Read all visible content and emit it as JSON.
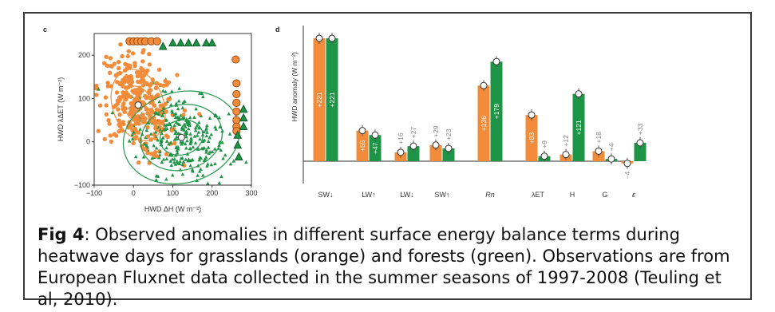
{
  "colors": {
    "grassland": "#F28C3A",
    "forest": "#1E9447",
    "grassland_edge": "#A0501A",
    "forest_edge": "#0C5A26",
    "axis": "#333333"
  },
  "caption": {
    "label": "Fig 4",
    "text": ": Observed anomalies in different surface energy balance terms during heatwave days for grasslands (orange) and forests (green). Observations are from European Fluxnet data collected in the summer seasons of 1997-2008 (Teuling et al, 2010)."
  },
  "chart_data": [
    {
      "type": "scatter",
      "panel_label": "c",
      "xlabel": "HWD ΔH (W m⁻²)",
      "ylabel": "HWD λΔET (W m⁻²)",
      "xlim": [
        -100,
        300
      ],
      "ylim": [
        -100,
        250
      ],
      "xticks": [
        -100,
        0,
        100,
        200,
        300
      ],
      "yticks": [
        -100,
        0,
        100,
        200
      ],
      "series": [
        {
          "name": "grassland",
          "marker": "circle",
          "n_points": 320,
          "center": [
            10,
            85
          ],
          "spread": [
            50,
            58
          ],
          "correlation": -0.35
        },
        {
          "name": "forest",
          "marker": "triangle",
          "n_points": 300,
          "center": [
            120,
            10
          ],
          "spread": [
            60,
            52
          ],
          "correlation": -0.3
        }
      ],
      "highlighted_points": [
        {
          "series": "grassland",
          "marker": "circle",
          "values": [
            [
              -10,
              232
            ],
            [
              0,
              232
            ],
            [
              10,
              232
            ],
            [
              20,
              232
            ],
            [
              30,
              232
            ],
            [
              45,
              232
            ],
            [
              60,
              232
            ],
            [
              260,
              190
            ],
            [
              262,
              135
            ],
            [
              262,
              110
            ],
            [
              262,
              90
            ],
            [
              262,
              70
            ],
            [
              262,
              50
            ],
            [
              262,
              35
            ],
            [
              262,
              25
            ]
          ]
        },
        {
          "series": "forest",
          "marker": "triangle",
          "values": [
            [
              75,
              220
            ],
            [
              100,
              228
            ],
            [
              120,
              228
            ],
            [
              140,
              228
            ],
            [
              160,
              228
            ],
            [
              185,
              228
            ],
            [
              200,
              228
            ],
            [
              265,
              15
            ],
            [
              265,
              -8
            ],
            [
              268,
              -35
            ],
            [
              280,
              75
            ],
            [
              280,
              55
            ],
            [
              280,
              35
            ]
          ]
        }
      ],
      "mean_points": [
        {
          "series": "grassland",
          "values": [
            12,
            85
          ]
        },
        {
          "series": "forest",
          "values": [
            122,
            10
          ]
        }
      ],
      "ellipses": [
        {
          "series": "grassland",
          "center": [
            12,
            85
          ],
          "radii": [
            [
              35,
              45
            ],
            [
              65,
              85
            ]
          ],
          "angle_deg": -20
        },
        {
          "series": "forest",
          "center": [
            122,
            10
          ],
          "radii": [
            [
              55,
              40
            ],
            [
              105,
              75
            ],
            [
              150,
              105
            ]
          ],
          "angle_deg": -15
        }
      ]
    },
    {
      "type": "bar",
      "panel_label": "d",
      "ylabel": "HWD anomaly (W m⁻²)",
      "ylim": [
        -10,
        250
      ],
      "grid": false,
      "categories": [
        "SW↓",
        "LW↑",
        "LW↓",
        "SW↑",
        "Rn",
        "λET",
        "H",
        "G",
        "ε"
      ],
      "series": [
        {
          "name": "grassland",
          "values": [
            221,
            55,
            16,
            29,
            136,
            83,
            12,
            18,
            -4
          ],
          "labels": [
            "+221",
            "+55",
            "+16",
            "+29",
            "+136",
            "+83",
            "+12",
            "+18",
            "−4"
          ]
        },
        {
          "name": "forest",
          "values": [
            221,
            47,
            27,
            23,
            179,
            9,
            121,
            4,
            33
          ],
          "labels": [
            "+221",
            "+47",
            "+27",
            "+23",
            "+179",
            "+9",
            "+121",
            "+4",
            "+33"
          ]
        }
      ]
    }
  ]
}
